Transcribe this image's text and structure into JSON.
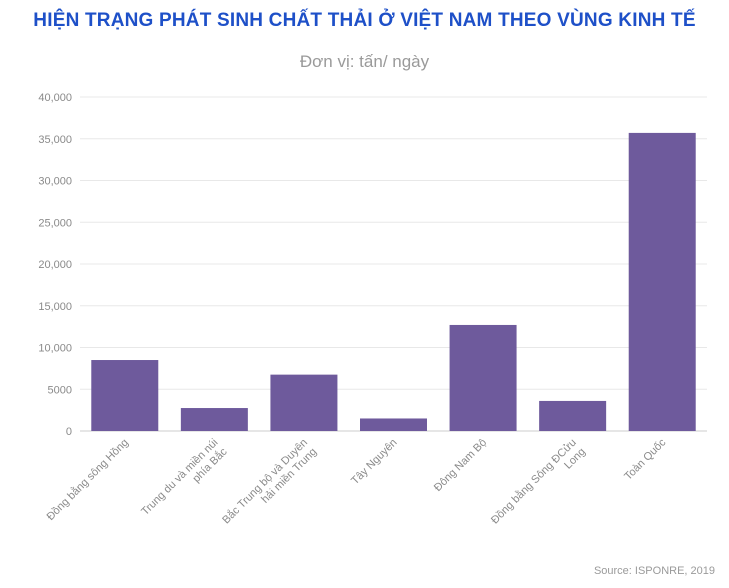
{
  "title": "HIỆN TRẠNG PHÁT SINH CHẤT THẢI Ở VIỆT NAM THEO VÙNG KINH TẾ",
  "subtitle": "Đơn vị: tấn/ ngày",
  "source": "Source: ISPONRE, 2019",
  "colors": {
    "bar": "#6e5a9c",
    "title": "#1e50c8",
    "grid": "#e8e8e8"
  },
  "chart_data": {
    "type": "bar",
    "title": "HIỆN TRẠNG PHÁT SINH CHẤT THẢI Ở VIỆT NAM THEO VÙNG KINH TẾ",
    "subtitle": "Đơn vị: tấn/ ngày",
    "categories": [
      [
        "Đồng bằng sông Hồng"
      ],
      [
        "Trung du và miền núi",
        "phía Bắc"
      ],
      [
        "Bắc Trung bộ và Duyên",
        "hải miền Trung"
      ],
      [
        "Tây Nguyên"
      ],
      [
        "Đông Nam Bộ"
      ],
      [
        "Đồng bằng Sông ĐCửu",
        "Long"
      ],
      [
        "Toàn Quốc"
      ]
    ],
    "values": [
      8500,
      2750,
      6750,
      1500,
      12700,
      3600,
      35700
    ],
    "ylim": [
      0,
      40000
    ],
    "yticks": [
      0,
      5000,
      10000,
      15000,
      20000,
      25000,
      30000,
      35000,
      40000
    ],
    "ytick_labels": [
      "0",
      "5000",
      "10,000",
      "15,000",
      "20,000",
      "25,000",
      "30,000",
      "35,000",
      "40,000"
    ],
    "grid": true,
    "xlabel": "",
    "ylabel": ""
  }
}
